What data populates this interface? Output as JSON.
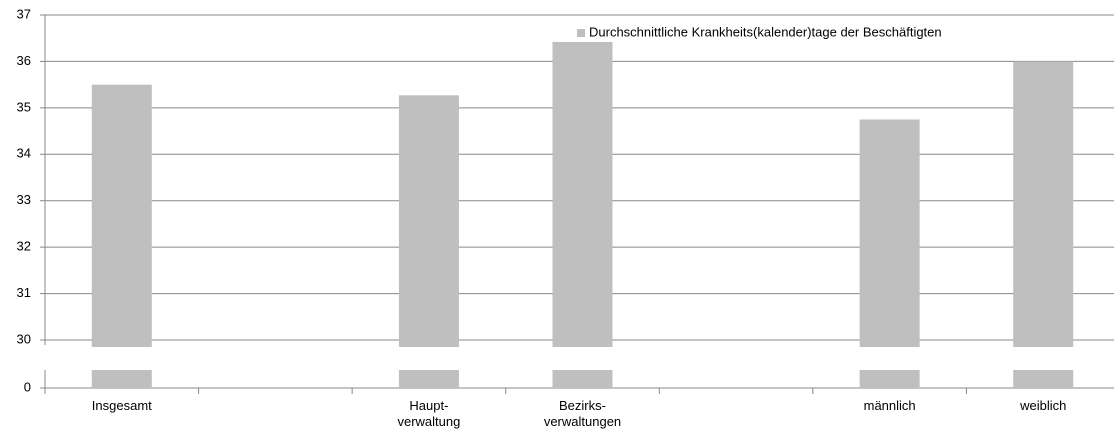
{
  "chart_data": {
    "type": "bar",
    "categories": [
      "Insgesamt",
      null,
      "Haupt-\nverwaltung",
      "Bezirks-\nverwaltungen",
      null,
      "männlich",
      "weiblich"
    ],
    "series": [
      {
        "name": "Durchschnittliche Krankheits(kalender)tage der Beschäftigten",
        "color": "#bfbfbf",
        "values": [
          35.5,
          null,
          35.27,
          36.42,
          null,
          34.75,
          36.0
        ]
      }
    ],
    "ylim": [
      0,
      37
    ],
    "yticks": [
      0,
      30,
      31,
      32,
      33,
      34,
      35,
      36,
      37
    ],
    "grid": true,
    "legend": "top-right"
  }
}
